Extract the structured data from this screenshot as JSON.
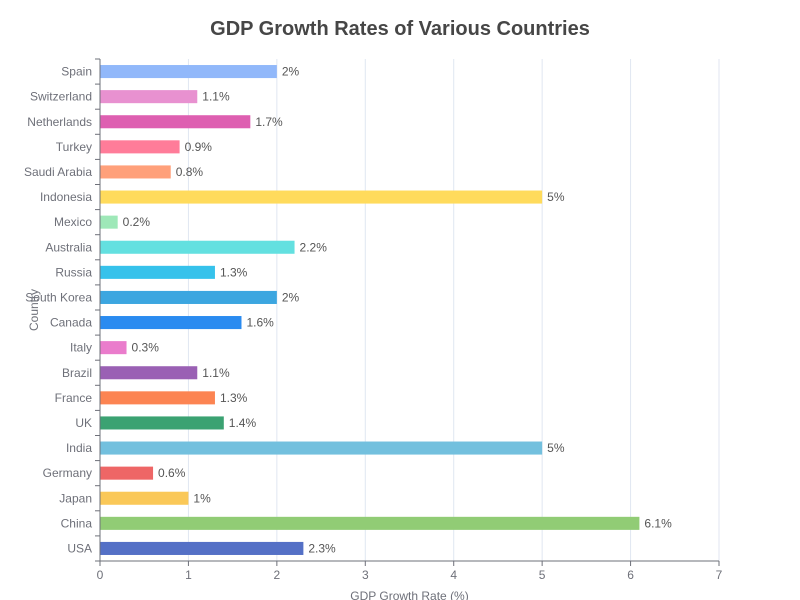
{
  "chart_data": {
    "type": "bar",
    "orientation": "horizontal",
    "title": "GDP Growth Rates of Various Countries",
    "xlabel": "GDP Growth Rate (%)",
    "ylabel": "Country",
    "xlim": [
      0,
      7
    ],
    "x_ticks": [
      "0",
      "1",
      "2",
      "3",
      "4",
      "5",
      "6",
      "7"
    ],
    "grid": true,
    "legend": "none",
    "categories": [
      "USA",
      "China",
      "Japan",
      "Germany",
      "India",
      "UK",
      "France",
      "Brazil",
      "Italy",
      "Canada",
      "South Korea",
      "Russia",
      "Australia",
      "Mexico",
      "Indonesia",
      "Saudi Arabia",
      "Turkey",
      "Netherlands",
      "Switzerland",
      "Spain"
    ],
    "values": [
      2.3,
      6.1,
      1,
      0.6,
      5,
      1.4,
      1.3,
      1.1,
      0.3,
      1.6,
      2,
      1.3,
      2.2,
      0.2,
      5,
      0.8,
      0.9,
      1.7,
      1.1,
      2
    ],
    "value_labels": [
      "2.3%",
      "6.1%",
      "1%",
      "0.6%",
      "5%",
      "1.4%",
      "1.3%",
      "1.1%",
      "0.3%",
      "1.6%",
      "2%",
      "1.3%",
      "2.2%",
      "0.2%",
      "5%",
      "0.8%",
      "0.9%",
      "1.7%",
      "1.1%",
      "2%"
    ],
    "colors": [
      "#5470c6",
      "#91cc75",
      "#fac858",
      "#ee6666",
      "#73c0de",
      "#3ba272",
      "#fc8452",
      "#9a60b4",
      "#ea7ccc",
      "#2a8bf0",
      "#3ca6e0",
      "#36c2eb",
      "#63e0e0",
      "#9ee8b8",
      "#ffdb5c",
      "#ffa07a",
      "#ff7c99",
      "#de5fb1",
      "#e891d0",
      "#91b8fa"
    ]
  }
}
